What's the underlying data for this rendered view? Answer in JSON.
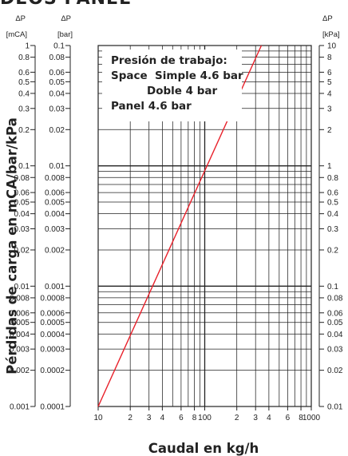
{
  "page_heading_fragment": "DEOS PANEL",
  "chart_data": {
    "type": "line",
    "xlabel": "Caudal en kg/h",
    "ylabel": "Pérdidas de carga en mCA/bar/kPa",
    "x_scale": "log",
    "y_scale": "log",
    "xlim": [
      10,
      1000
    ],
    "ylim_bar": [
      0.0001,
      0.1
    ],
    "grid": true,
    "x_ticks": [
      10,
      20,
      30,
      40,
      60,
      80,
      100,
      200,
      300,
      400,
      600,
      800,
      1000
    ],
    "x_tick_labels": [
      "10",
      "2",
      "3",
      "4",
      "6",
      "8",
      "100",
      "2",
      "3",
      "4",
      "6",
      "8",
      "1000"
    ],
    "y_axes": [
      {
        "header": "ΔP",
        "unit": "[mCA]",
        "side": "left",
        "ticks": [
          1,
          0.8,
          0.6,
          0.5,
          0.4,
          0.3,
          0.2,
          0.1,
          0.08,
          0.06,
          0.05,
          0.04,
          0.03,
          0.02,
          0.01,
          0.008,
          0.006,
          0.005,
          0.004,
          0.003,
          0.002,
          0.001
        ],
        "tick_labels": [
          "1",
          "0.8",
          "0.6",
          "0.5",
          "0.4",
          "0.3",
          "0.2",
          "0.1",
          "0.08",
          "0.06",
          "0.05",
          "0.04",
          "0.03",
          "0.02",
          "0.01",
          "0.008",
          "0.006",
          "0.005",
          "0.004",
          "0.003",
          "0.002",
          "0.001"
        ]
      },
      {
        "header": "ΔP",
        "unit": "[bar]",
        "side": "left",
        "ticks": [
          0.1,
          0.08,
          0.06,
          0.05,
          0.04,
          0.03,
          0.02,
          0.01,
          0.008,
          0.006,
          0.005,
          0.004,
          0.003,
          0.002,
          0.001,
          0.0008,
          0.0006,
          0.0005,
          0.0004,
          0.0003,
          0.0002,
          0.0001
        ],
        "tick_labels": [
          "0.1",
          "0.08",
          "0.06",
          "0.05",
          "0.04",
          "0.03",
          "0.02",
          "0.01",
          "0.008",
          "0.006",
          "0.005",
          "0.004",
          "0.003",
          "0.002",
          "0.001",
          "0.0008",
          "0.0006",
          "0.0005",
          "0.0004",
          "0.0003",
          "0.0002",
          "0.0001"
        ]
      },
      {
        "header": "ΔP",
        "unit": "[kPa]",
        "side": "right",
        "ticks": [
          10,
          8,
          6,
          5,
          4,
          3,
          2,
          1,
          0.8,
          0.6,
          0.5,
          0.4,
          0.3,
          0.2,
          0.1,
          0.08,
          0.06,
          0.05,
          0.04,
          0.03,
          0.02,
          0.01
        ],
        "tick_labels": [
          "10",
          "8",
          "6",
          "5",
          "4",
          "3",
          "2",
          "1",
          "0.8",
          "0.6",
          "0.5",
          "0.4",
          "0.3",
          "0.2",
          "0.1",
          "0.08",
          "0.06",
          "0.05",
          "0.04",
          "0.03",
          "0.02",
          "0.01"
        ]
      }
    ],
    "series": [
      {
        "color": "#e8202a",
        "x": [
          10,
          340
        ],
        "y_bar": [
          0.0001,
          0.1
        ]
      }
    ],
    "annotation": {
      "lines": [
        "Presión de trabajo:",
        "Space  Simple 4.6 bar",
        "Doble 4 bar",
        "Panel 4.6 bar"
      ]
    }
  }
}
